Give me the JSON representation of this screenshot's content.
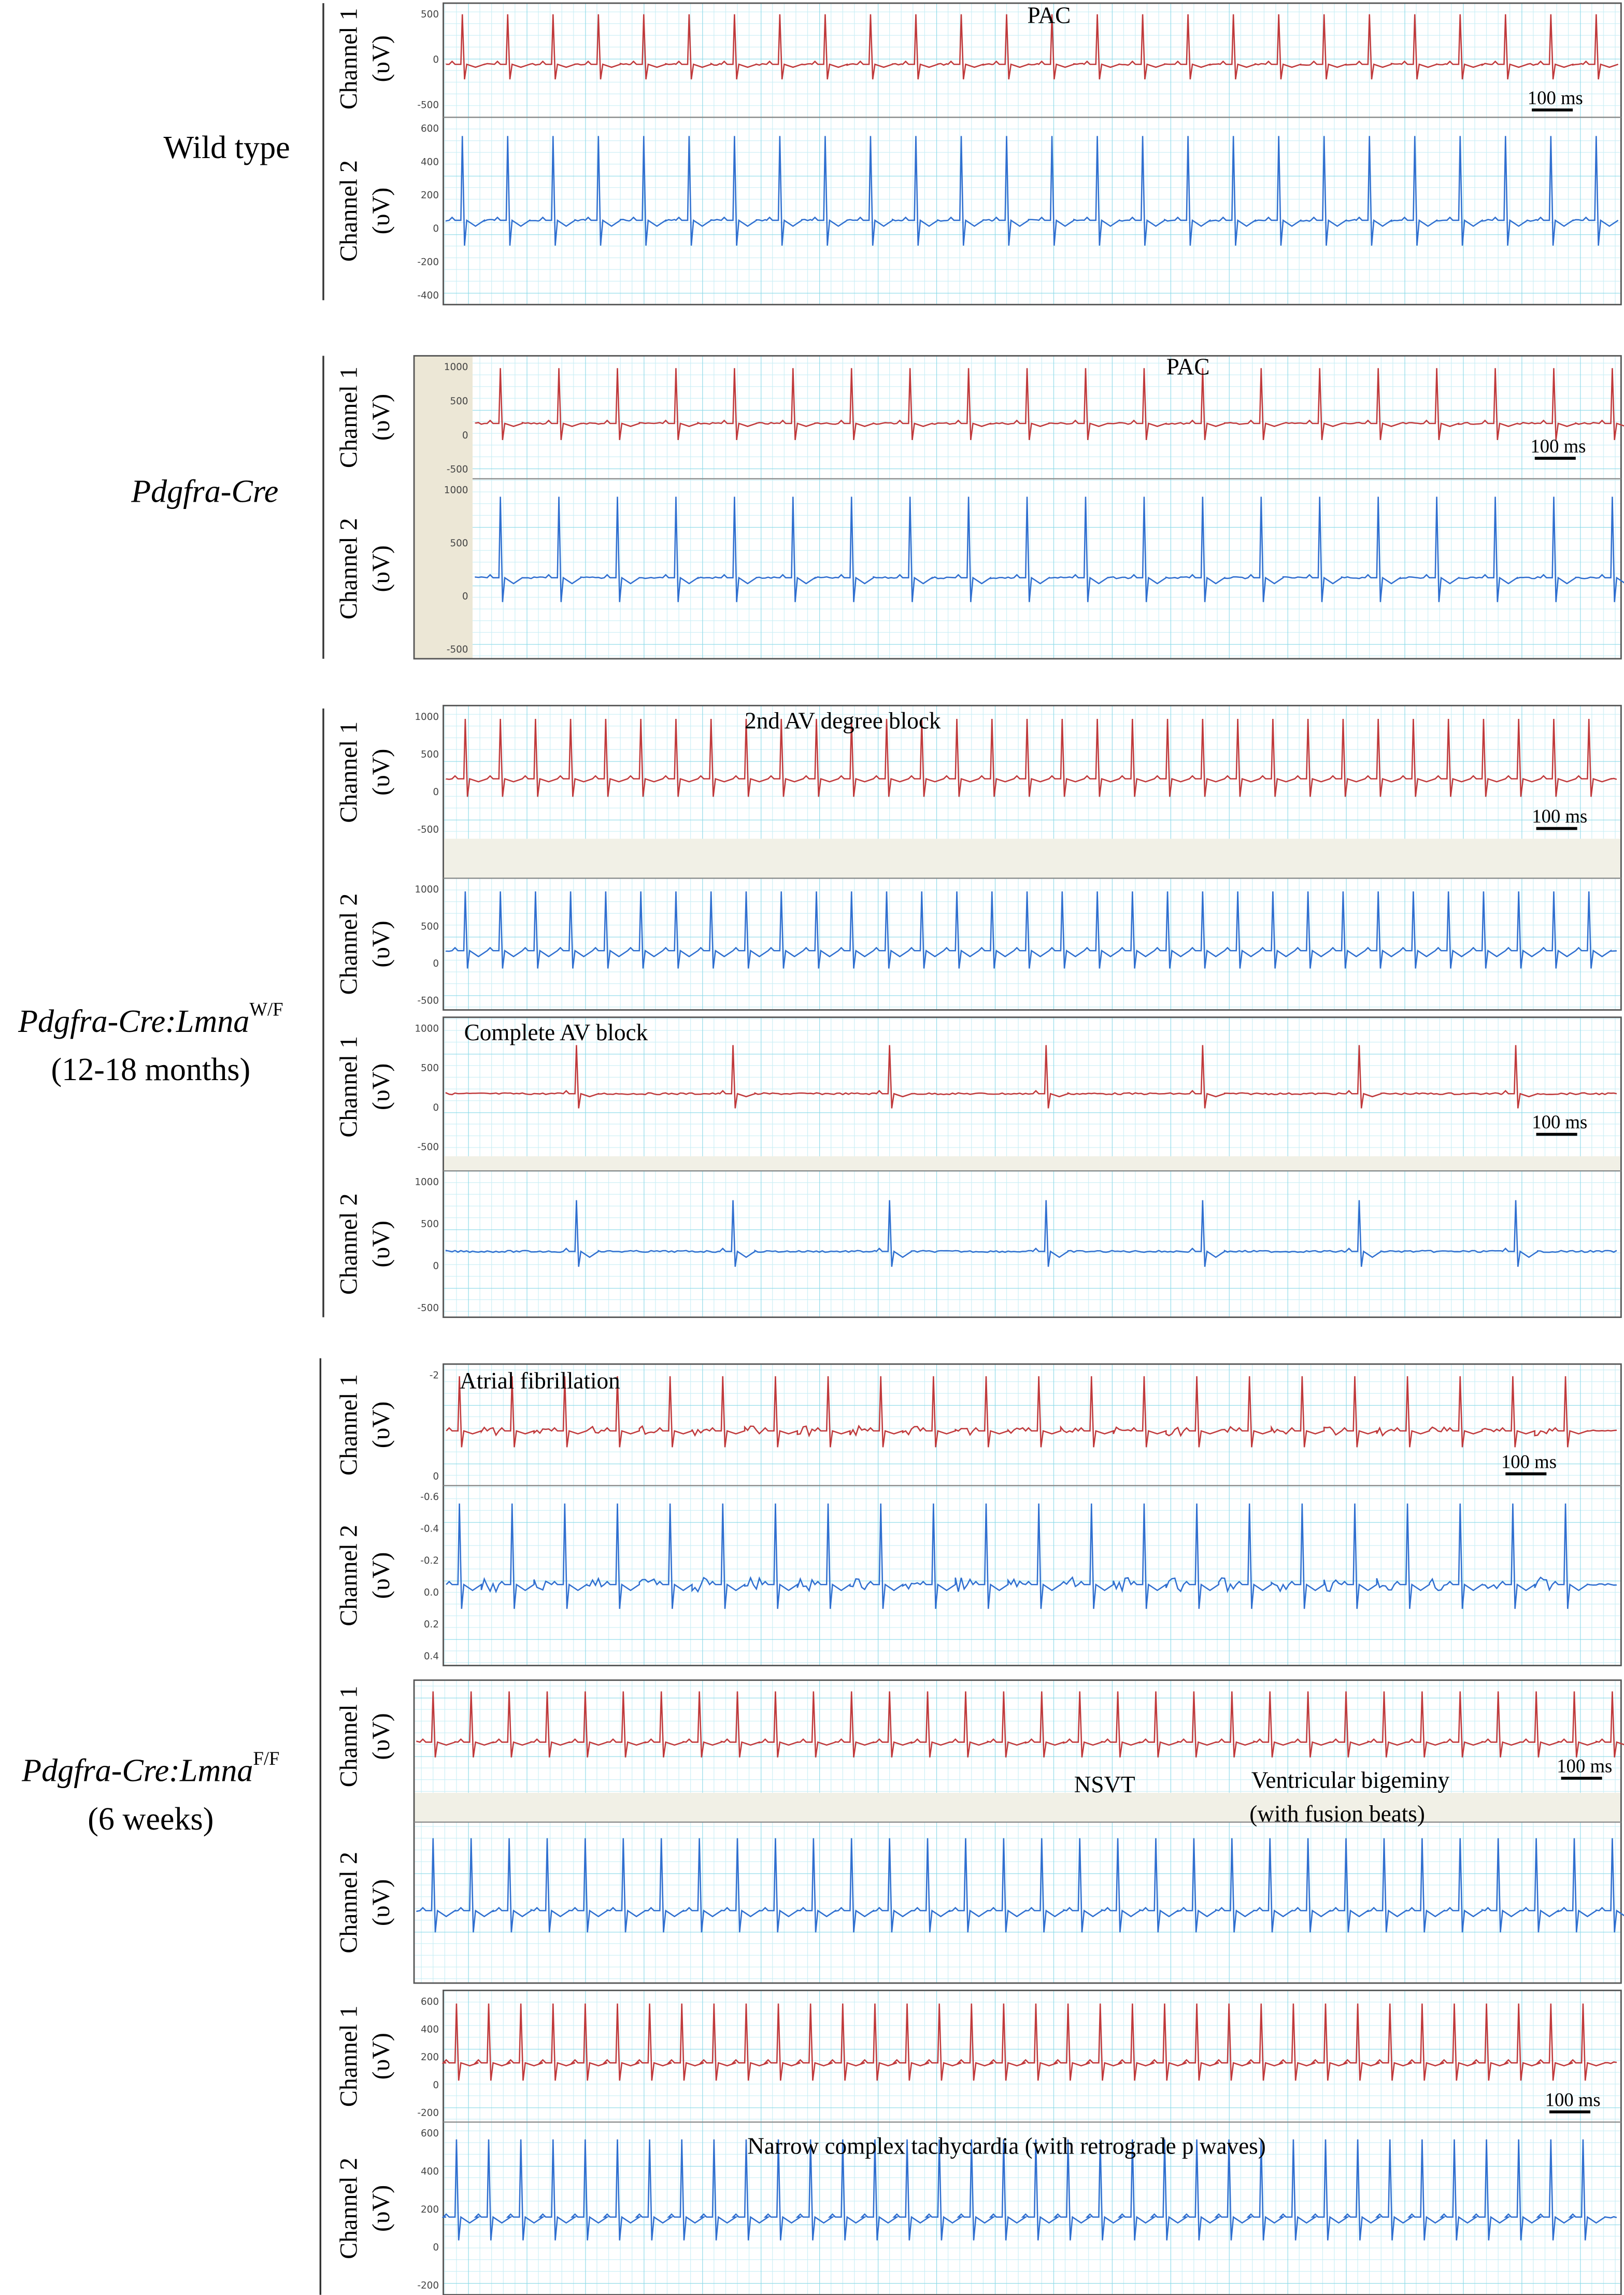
{
  "groups": [
    {
      "label": "Wild type",
      "panels": [
        {
          "annotations": [
            "PAC"
          ],
          "scale_bar": "100 ms",
          "channels": [
            {
              "label": "Channel 1",
              "unit": "(υV)",
              "yticks": [
                "500",
                "0",
                "-500"
              ]
            },
            {
              "label": "Channel 2",
              "unit": "(υV)",
              "yticks": [
                "600",
                "400",
                "200",
                "0",
                "-200",
                "-400"
              ]
            }
          ]
        }
      ]
    },
    {
      "label": "Pdgfra-Cre",
      "panels": [
        {
          "annotations": [
            "PAC"
          ],
          "scale_bar": "100 ms",
          "channels": [
            {
              "label": "Channel 1",
              "unit": "(υV)",
              "yticks": [
                "1000",
                "500",
                "0",
                "-500"
              ]
            },
            {
              "label": "Channel 2",
              "unit": "(υV)",
              "yticks": [
                "1000",
                "500",
                "0",
                "-500"
              ]
            }
          ]
        }
      ]
    },
    {
      "label": "Pdgfra-Cre:Lmna",
      "label_sup": "W/F",
      "sublabel": "(12-18 months)",
      "panels": [
        {
          "annotations": [
            "2nd AV degree block"
          ],
          "scale_bar": "100 ms",
          "channels": [
            {
              "label": "Channel 1",
              "unit": "(υV)",
              "yticks": [
                "1000",
                "500",
                "0",
                "-500"
              ]
            },
            {
              "label": "Channel 2",
              "unit": "(υV)",
              "yticks": [
                "1000",
                "500",
                "0",
                "-500"
              ]
            }
          ]
        },
        {
          "annotations": [
            "Complete AV block"
          ],
          "scale_bar": "100 ms",
          "channels": [
            {
              "label": "Channel 1",
              "unit": "(υV)",
              "yticks": [
                "1000",
                "500",
                "0",
                "-500"
              ]
            },
            {
              "label": "Channel 2",
              "unit": "(υV)",
              "yticks": [
                "1000",
                "500",
                "0",
                "-500"
              ]
            }
          ]
        }
      ]
    },
    {
      "label": "Pdgfra-Cre:Lmna",
      "label_sup": "F/F",
      "sublabel": "(6 weeks)",
      "panels": [
        {
          "annotations": [
            "Atrial fibrillation"
          ],
          "scale_bar": "100 ms",
          "channels": [
            {
              "label": "Channel 1",
              "unit": "(υV)",
              "yticks": [
                "-2",
                "0"
              ]
            },
            {
              "label": "Channel 2",
              "unit": "(υV)",
              "yticks": [
                "-0.6",
                "-0.4",
                "-0.2",
                "0.0",
                "0.2",
                "0.4"
              ]
            }
          ]
        },
        {
          "annotations": [
            "NSVT",
            "Ventricular bigeminy",
            "(with fusion beats)"
          ],
          "scale_bar": "100 ms",
          "channels": [
            {
              "label": "Channel 1",
              "unit": "(υV)",
              "yticks": []
            },
            {
              "label": "Channel 2",
              "unit": "(υV)",
              "yticks": []
            }
          ]
        },
        {
          "annotations": [
            "Narrow complex tachycardia (with retrograde p waves)"
          ],
          "scale_bar": "100 ms",
          "channels": [
            {
              "label": "Channel 1",
              "unit": "(υV)",
              "yticks": [
                "600",
                "400",
                "200",
                "0",
                "-200"
              ]
            },
            {
              "label": "Channel 2",
              "unit": "(υV)",
              "yticks": [
                "600",
                "400",
                "200",
                "0",
                "-200"
              ]
            }
          ]
        }
      ]
    }
  ]
}
